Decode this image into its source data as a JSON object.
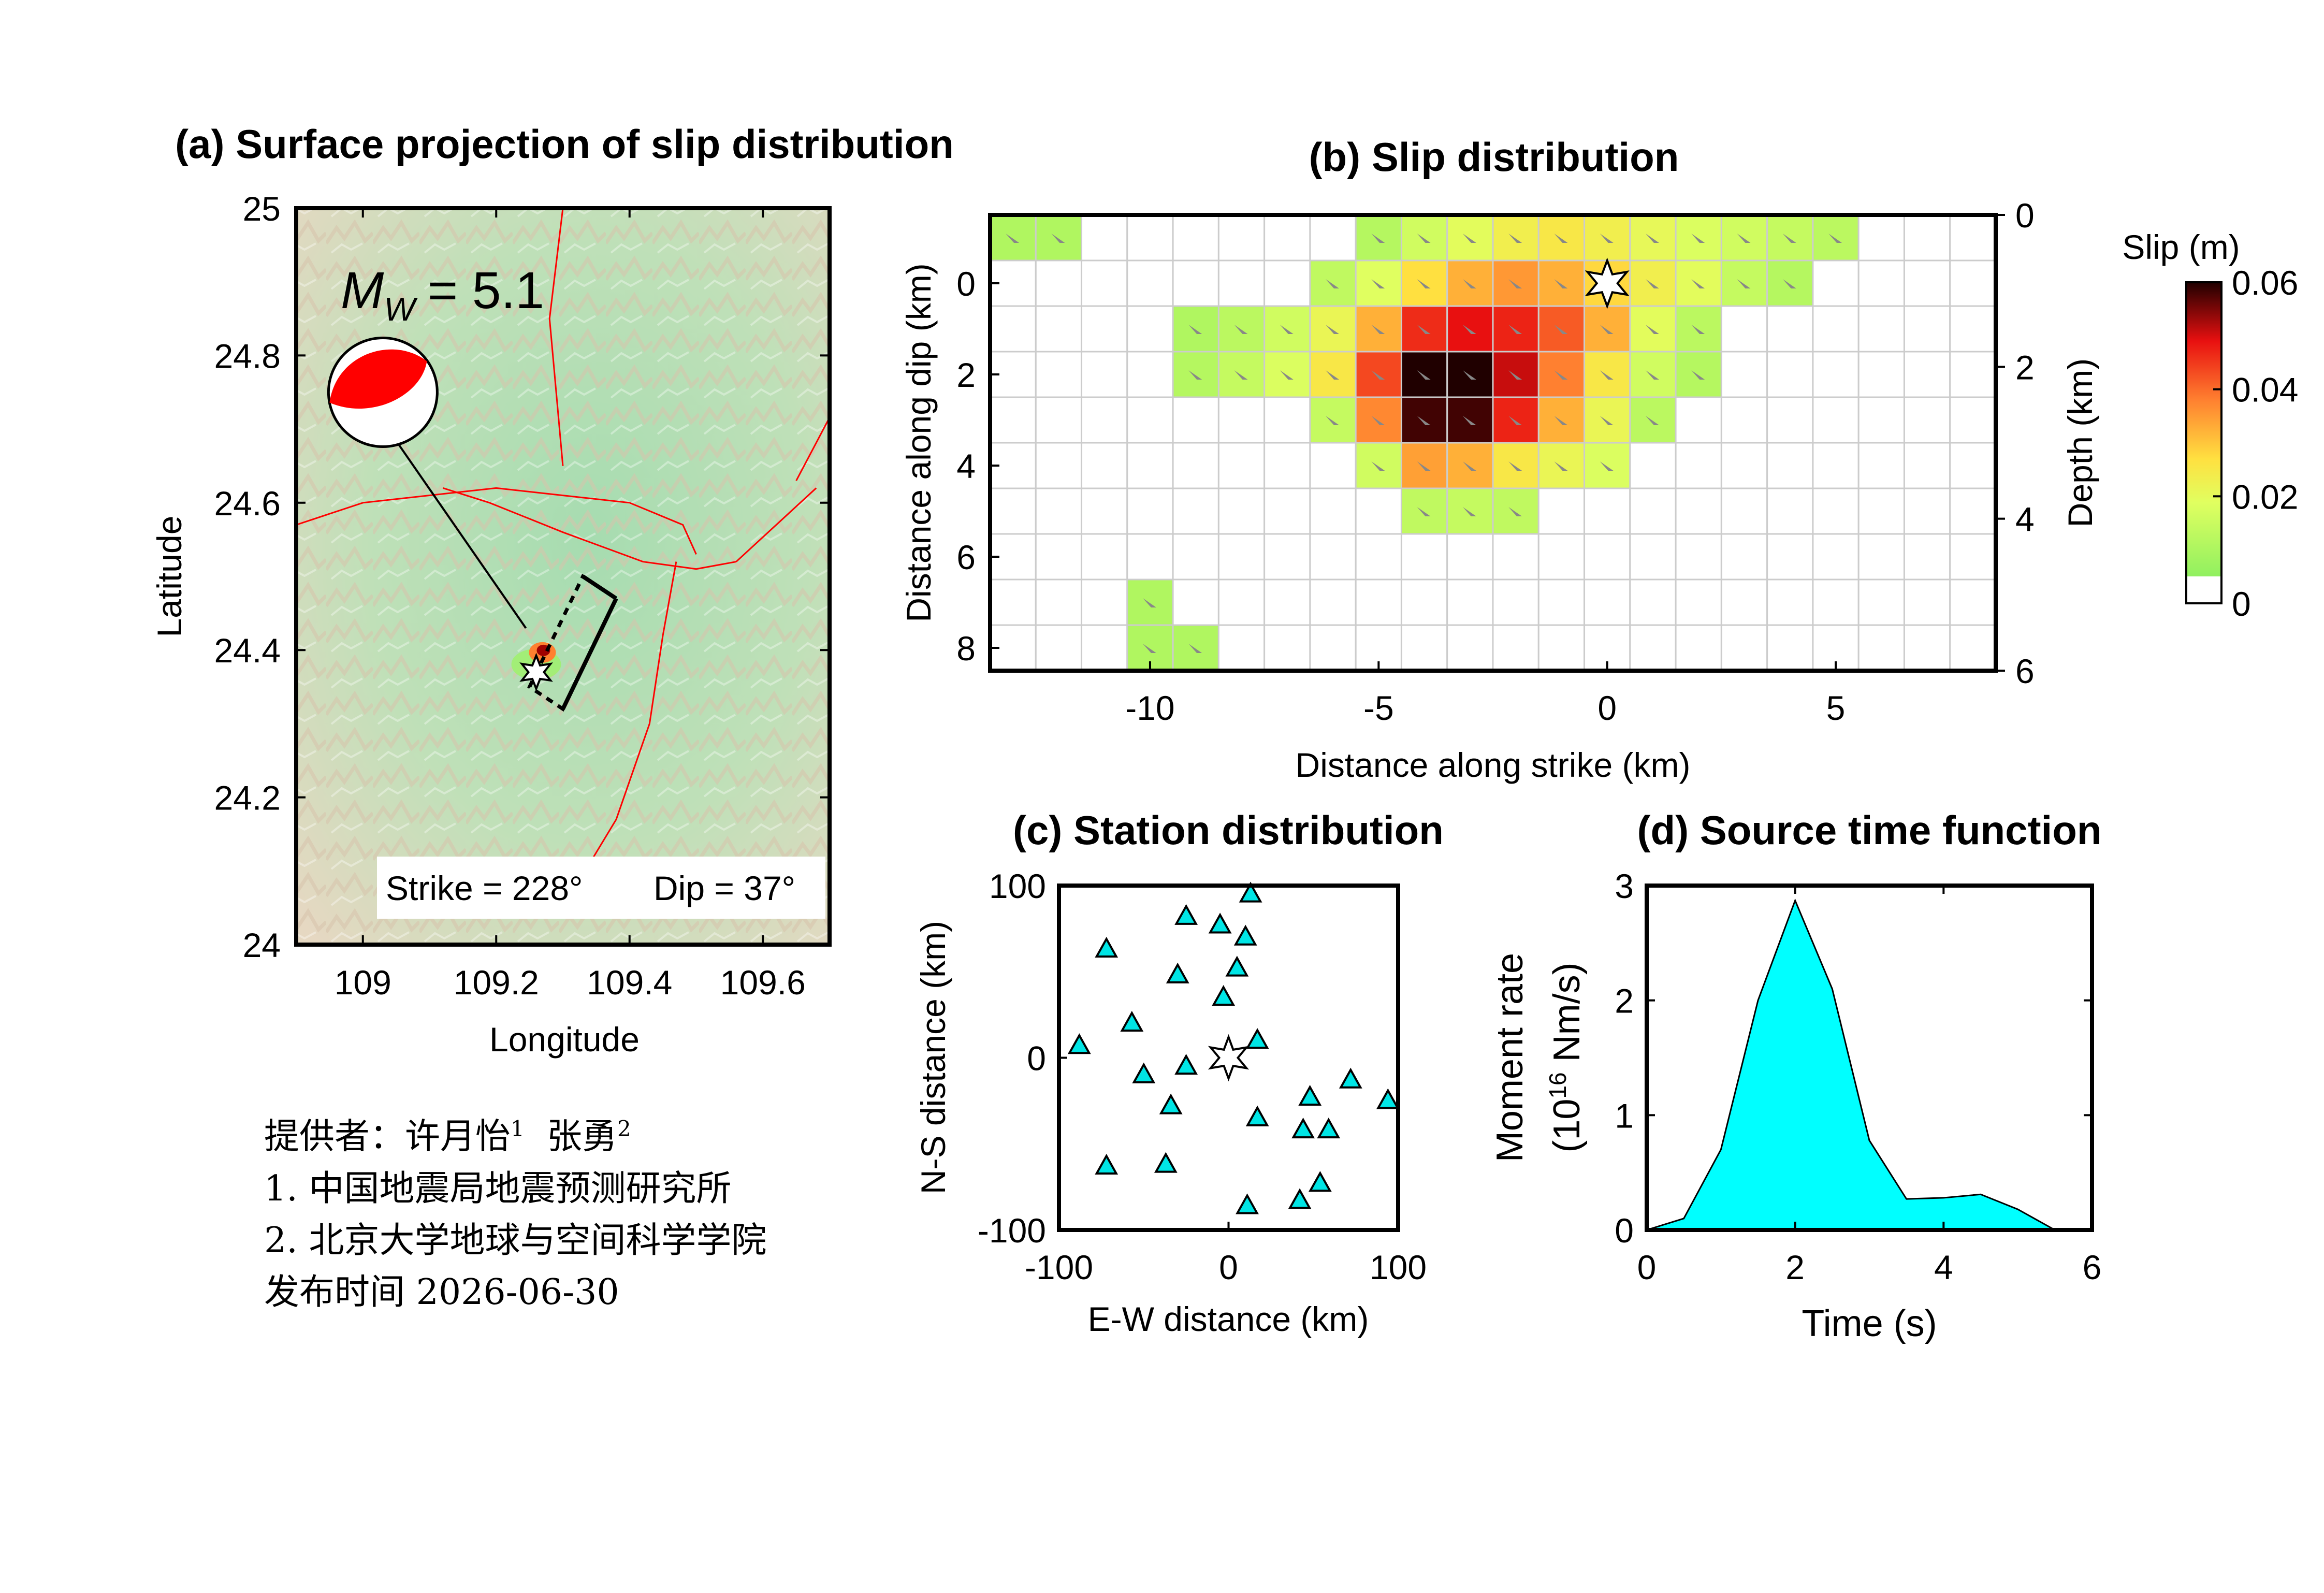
{
  "colors": {
    "axis": "#000000",
    "grid": "#cccccc",
    "beachball_red": "#ff0000",
    "fault_line": "#ff0000",
    "station_fill": "#00e5e5",
    "stf_fill": "#00ffff",
    "terrain_low": "#a8dcb0",
    "terrain_high": "#e8dcc8"
  },
  "chart_data": [
    {
      "id": "a",
      "type": "map",
      "title": "(a) Surface projection of slip distribution",
      "xlabel": "Longitude",
      "ylabel": "Latitude",
      "xlim": [
        108.9,
        109.7
      ],
      "ylim": [
        24.0,
        25.0
      ],
      "xticks": [
        109,
        109.2,
        109.4,
        109.6
      ],
      "xtick_labels": [
        "109",
        "109.2",
        "109.4",
        "109.6"
      ],
      "yticks": [
        24,
        24.2,
        24.4,
        24.6,
        24.8,
        25
      ],
      "ytick_labels": [
        "24",
        "24.2",
        "24.4",
        "24.6",
        "24.8",
        "25"
      ],
      "magnitude_label": "M_W = 5.1",
      "magnitude_symbol": "M",
      "magnitude_sub": "W",
      "magnitude_rest": "= 5.1",
      "strike_label": "Strike = 228°",
      "dip_label": "Dip = 37°",
      "epicenter": {
        "lon": 109.26,
        "lat": 24.37
      },
      "beachball": {
        "lon": 109.03,
        "lat": 24.75
      },
      "fault_box": [
        [
          109.33,
          24.5
        ],
        [
          109.38,
          24.47
        ],
        [
          109.3,
          24.32
        ],
        [
          109.25,
          24.35
        ]
      ],
      "faults": [
        [
          [
            108.9,
            24.57
          ],
          [
            109.0,
            24.6
          ],
          [
            109.2,
            24.62
          ],
          [
            109.3,
            24.61
          ],
          [
            109.4,
            24.6
          ],
          [
            109.48,
            24.57
          ],
          [
            109.5,
            24.53
          ]
        ],
        [
          [
            109.12,
            24.62
          ],
          [
            109.19,
            24.6
          ],
          [
            109.3,
            24.56
          ],
          [
            109.42,
            24.52
          ],
          [
            109.5,
            24.51
          ],
          [
            109.56,
            24.52
          ]
        ],
        [
          [
            109.47,
            24.52
          ],
          [
            109.45,
            24.42
          ],
          [
            109.43,
            24.3
          ],
          [
            109.38,
            24.17
          ],
          [
            109.3,
            24.05
          ]
        ],
        [
          [
            109.56,
            24.52
          ],
          [
            109.62,
            24.57
          ],
          [
            109.68,
            24.62
          ]
        ],
        [
          [
            109.65,
            24.63
          ],
          [
            109.72,
            24.75
          ]
        ],
        [
          [
            109.3,
            25.0
          ],
          [
            109.28,
            24.85
          ],
          [
            109.3,
            24.65
          ]
        ]
      ]
    },
    {
      "id": "b",
      "type": "heatmap",
      "title": "(b) Slip distribution",
      "xlabel": "Distance along strike (km)",
      "ylabel": "Distance along dip (km)",
      "y2label": "Depth (km)",
      "xlim": [
        -13.5,
        8.5
      ],
      "ylim": [
        8.5,
        -1.5
      ],
      "xticks": [
        -10,
        -5,
        0,
        5
      ],
      "xtick_labels": [
        "-10",
        "-5",
        "0",
        "5"
      ],
      "yticks": [
        0,
        2,
        4,
        6,
        8
      ],
      "ytick_labels": [
        "0",
        "2",
        "4",
        "6",
        "8"
      ],
      "y2ticks": [
        0,
        2,
        4,
        6
      ],
      "y2tick_labels": [
        "0",
        "2",
        "4",
        "6"
      ],
      "hypocenter": {
        "x": 0,
        "y": 0
      },
      "grid": {
        "x0": -13.5,
        "y0": -1.5,
        "dx": 1.0,
        "dy": 1.0,
        "nx": 22,
        "ny": 10
      },
      "colorbar": {
        "title": "Slip (m)",
        "min": 0,
        "max": 0.06,
        "ticks": [
          0,
          0.02,
          0.04,
          0.06
        ],
        "tick_labels": [
          "0",
          "0.02",
          "0.04",
          "0.06"
        ]
      },
      "slip": [
        [
          0.006,
          0.006,
          0,
          0,
          0,
          0,
          0,
          0,
          0.007,
          0.012,
          0.016,
          0.02,
          0.022,
          0.02,
          0.017,
          0.014,
          0.012,
          0.01,
          0.008,
          0,
          0,
          0
        ],
        [
          0,
          0,
          0,
          0,
          0,
          0,
          0,
          0.009,
          0.015,
          0.024,
          0.03,
          0.033,
          0.03,
          0.025,
          0.02,
          0.016,
          0.01,
          0.007,
          0,
          0,
          0,
          0
        ],
        [
          0,
          0,
          0,
          0,
          0.006,
          0.008,
          0.012,
          0.018,
          0.03,
          0.045,
          0.048,
          0.046,
          0.04,
          0.03,
          0.016,
          0.008,
          0,
          0,
          0,
          0,
          0,
          0
        ],
        [
          0,
          0,
          0,
          0,
          0.007,
          0.01,
          0.014,
          0.022,
          0.042,
          0.06,
          0.06,
          0.05,
          0.036,
          0.022,
          0.012,
          0.007,
          0,
          0,
          0,
          0,
          0,
          0
        ],
        [
          0,
          0,
          0,
          0,
          0,
          0,
          0,
          0.01,
          0.035,
          0.058,
          0.058,
          0.046,
          0.03,
          0.018,
          0.008,
          0,
          0,
          0,
          0,
          0,
          0,
          0
        ],
        [
          0,
          0,
          0,
          0,
          0,
          0,
          0,
          0,
          0.012,
          0.032,
          0.03,
          0.022,
          0.018,
          0.014,
          0,
          0,
          0,
          0,
          0,
          0,
          0,
          0
        ],
        [
          0,
          0,
          0,
          0,
          0,
          0,
          0,
          0,
          0,
          0.009,
          0.01,
          0.009,
          0,
          0,
          0,
          0,
          0,
          0,
          0,
          0,
          0,
          0
        ],
        [
          0,
          0,
          0,
          0,
          0,
          0,
          0,
          0,
          0,
          0,
          0,
          0,
          0,
          0,
          0,
          0,
          0,
          0,
          0,
          0,
          0,
          0
        ],
        [
          0,
          0,
          0,
          0.006,
          0,
          0,
          0,
          0,
          0,
          0,
          0,
          0,
          0,
          0,
          0,
          0,
          0,
          0,
          0,
          0,
          0,
          0
        ],
        [
          0,
          0,
          0,
          0.006,
          0.006,
          0,
          0,
          0,
          0,
          0,
          0,
          0,
          0,
          0,
          0,
          0,
          0,
          0,
          0,
          0,
          0,
          0
        ]
      ]
    },
    {
      "id": "c",
      "type": "scatter",
      "title": "(c) Station distribution",
      "xlabel": "E-W distance (km)",
      "ylabel": "N-S distance (km)",
      "xlim": [
        -100,
        100
      ],
      "ylim": [
        -100,
        100
      ],
      "xticks": [
        -100,
        0,
        100
      ],
      "xtick_labels": [
        "-100",
        "0",
        "100"
      ],
      "yticks": [
        -100,
        0,
        100
      ],
      "ytick_labels": [
        "-100",
        "0",
        "100"
      ],
      "epicenter": {
        "x": 0,
        "y": 0
      },
      "stations": [
        {
          "x": 13,
          "y": 95
        },
        {
          "x": -25,
          "y": 82
        },
        {
          "x": -5,
          "y": 77
        },
        {
          "x": 10,
          "y": 70
        },
        {
          "x": -72,
          "y": 63
        },
        {
          "x": 5,
          "y": 52
        },
        {
          "x": -30,
          "y": 48
        },
        {
          "x": -3,
          "y": 35
        },
        {
          "x": -57,
          "y": 20
        },
        {
          "x": -88,
          "y": 7
        },
        {
          "x": 17,
          "y": 10
        },
        {
          "x": -25,
          "y": -5
        },
        {
          "x": -50,
          "y": -10
        },
        {
          "x": 72,
          "y": -13
        },
        {
          "x": 48,
          "y": -23
        },
        {
          "x": 94,
          "y": -25
        },
        {
          "x": -34,
          "y": -28
        },
        {
          "x": 17,
          "y": -35
        },
        {
          "x": 44,
          "y": -42
        },
        {
          "x": 59,
          "y": -42
        },
        {
          "x": -72,
          "y": -63
        },
        {
          "x": -37,
          "y": -62
        },
        {
          "x": 54,
          "y": -73
        },
        {
          "x": 42,
          "y": -83
        },
        {
          "x": 11,
          "y": -86
        }
      ]
    },
    {
      "id": "d",
      "type": "area",
      "title": "(d) Source time function",
      "xlabel": "Time (s)",
      "ylabel": "Moment rate",
      "ylabel2_pre": "(10",
      "ylabel2_sup": "16",
      "ylabel2_post": " Nm/s)",
      "xlim": [
        0,
        6
      ],
      "ylim": [
        0,
        3
      ],
      "xticks": [
        0,
        2,
        4,
        6
      ],
      "xtick_labels": [
        "0",
        "2",
        "4",
        "6"
      ],
      "yticks": [
        0,
        1,
        2,
        3
      ],
      "ytick_labels": [
        "0",
        "1",
        "2",
        "3"
      ],
      "x": [
        0,
        0.5,
        1.0,
        1.5,
        2.0,
        2.5,
        3.0,
        3.5,
        4.0,
        4.5,
        5.0,
        5.5
      ],
      "y": [
        0,
        0.1,
        0.7,
        2.0,
        2.87,
        2.1,
        0.78,
        0.27,
        0.28,
        0.31,
        0.18,
        0
      ]
    }
  ],
  "credits": {
    "provider_prefix": "提供者：许月怡",
    "sup1": "1",
    "provider_second": "张勇",
    "sup2": "2",
    "line1": "1. 中国地震局地震预测研究所",
    "line2": "2. 北京大学地球与空间科学学院",
    "line3": "发布时间 2026-06-30"
  }
}
